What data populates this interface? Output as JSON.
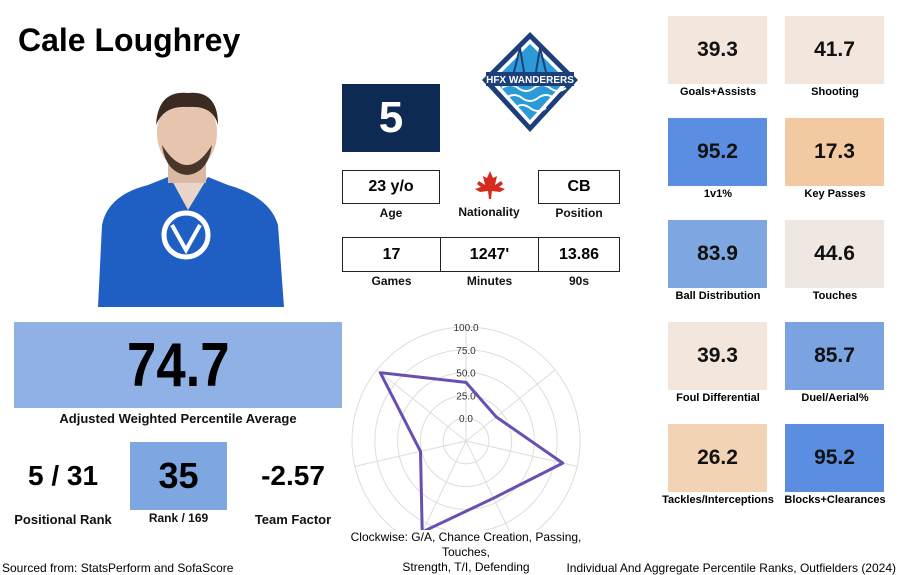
{
  "player": {
    "name": "Cale Loughrey",
    "number": "5"
  },
  "info": [
    {
      "value": "23 y/o",
      "label": "Age"
    },
    {
      "label": "Nationality"
    },
    {
      "value": "CB",
      "label": "Position"
    },
    {
      "value": "17",
      "label": "Games"
    },
    {
      "value": "1247'",
      "label": "Minutes"
    },
    {
      "value": "13.86",
      "label": "90s"
    }
  ],
  "summary": {
    "average": {
      "value": "74.7",
      "label": "Adjusted Weighted Percentile Average"
    },
    "positional_rank": {
      "value": "5 / 31",
      "label": "Positional Rank"
    },
    "rank": {
      "value": "35",
      "label": "Rank / 169"
    },
    "team_factor": {
      "value": "-2.57",
      "label": "Team Factor"
    }
  },
  "tiles": [
    {
      "value": "39.3",
      "label": "Goals+Assists",
      "color": "#f2e6dd"
    },
    {
      "value": "41.7",
      "label": "Shooting",
      "color": "#f2e6dd"
    },
    {
      "value": "95.2",
      "label": "1v1%",
      "color": "#5b8de0"
    },
    {
      "value": "17.3",
      "label": "Key Passes",
      "color": "#f2c9a0"
    },
    {
      "value": "83.9",
      "label": "Ball Distribution",
      "color": "#7ea6e0"
    },
    {
      "value": "44.6",
      "label": "Touches",
      "color": "#efe7e1"
    },
    {
      "value": "39.3",
      "label": "Foul Differential",
      "color": "#f2e6dd"
    },
    {
      "value": "85.7",
      "label": "Duel/Aerial%",
      "color": "#7ba3e2"
    },
    {
      "value": "26.2",
      "label": "Tackles/Interceptions",
      "color": "#f3d3b6"
    },
    {
      "value": "95.2",
      "label": "Blocks+Clearances",
      "color": "#5b8de0"
    }
  ],
  "chart_data": {
    "type": "radar",
    "caption": [
      "Clockwise: G/A, Chance Creation, Passing, Touches,",
      "Strength, T/I, Defending"
    ],
    "values": [
      39.3,
      17.3,
      83.9,
      44.6,
      85.7,
      26.2,
      95.2
    ],
    "color": "#6a4fb0",
    "rlim": [
      -25,
      100
    ],
    "rticks": [
      {
        "value": 0,
        "label": "0.0"
      },
      {
        "value": 25,
        "label": "25.0"
      },
      {
        "value": 50,
        "label": "50.0"
      },
      {
        "value": 75,
        "label": "75.0"
      },
      {
        "value": 100,
        "label": "100.0"
      }
    ]
  },
  "footer": {
    "source": "Sourced from: StatsPerform and SofaScore",
    "title": "Individual And Aggregate Percentile Ranks, Outfielders (2024)"
  }
}
